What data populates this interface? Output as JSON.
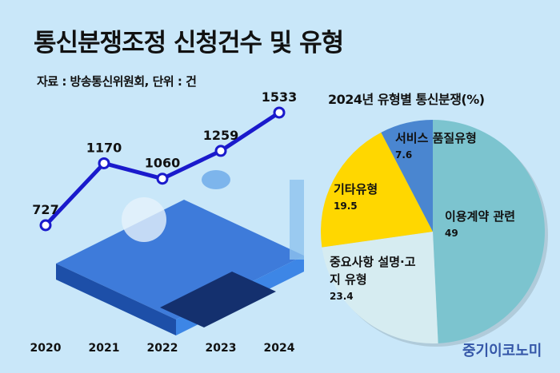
{
  "title": "통신분쟁조정 신청건수 및 유형",
  "source": "자료 : 방송통신위원회, 단위 : 건",
  "brand": "중기이코노미",
  "chart_data": [
    {
      "type": "line",
      "categories": [
        "2020",
        "2021",
        "2022",
        "2023",
        "2024"
      ],
      "values": [
        727,
        1170,
        1060,
        1259,
        1533
      ],
      "data_labels": [
        "727",
        "1170",
        "1060",
        "1259",
        "1533"
      ],
      "color": "#1a1acc",
      "grid": false
    },
    {
      "type": "pie",
      "title": "2024년 유형별 통신분쟁(%)",
      "slices": [
        {
          "label": "이용계약 관련",
          "value": 49,
          "value_label": "49",
          "color": "#7cc4cf"
        },
        {
          "label": "중요사항 설명·고지 유형",
          "label_lines": [
            "중요사항 설명·고",
            "지 유형"
          ],
          "value": 23.4,
          "value_label": "23.4",
          "color": "#d6ecf1"
        },
        {
          "label": "기타유형",
          "value": 19.5,
          "value_label": "19.5",
          "color": "#ffd700"
        },
        {
          "label": "서비스 품질유형",
          "value": 7.6,
          "value_label": "7.6",
          "color": "#4a86d0"
        }
      ]
    }
  ]
}
